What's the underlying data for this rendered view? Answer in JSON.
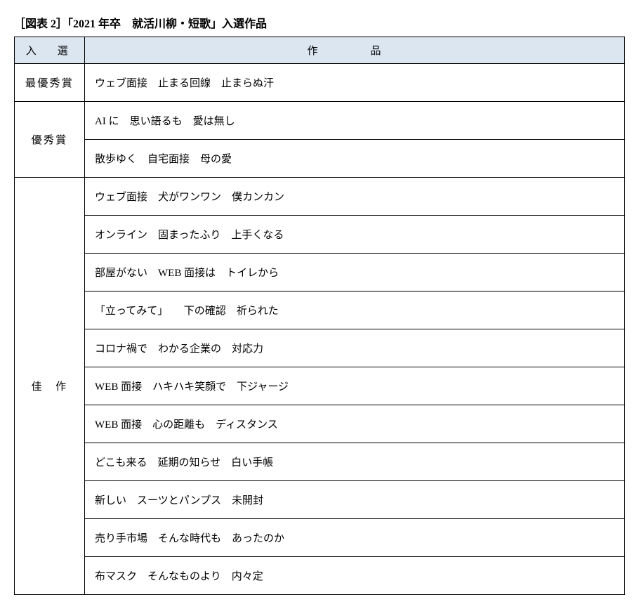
{
  "title": "［図表 2］「2021 年卒 就活川柳・短歌」入選作品",
  "table": {
    "headers": {
      "award": "入 選",
      "work": "作　品"
    },
    "groups": [
      {
        "award": "最優秀賞",
        "spaced": false,
        "works": [
          "ウェブ面接　止まる回線　止まらぬ汗"
        ]
      },
      {
        "award": "優秀賞",
        "spaced": false,
        "works": [
          "AI に　思い語るも　愛は無し",
          "散歩ゆく　自宅面接　母の愛"
        ]
      },
      {
        "award": "佳　作",
        "spaced": false,
        "works": [
          "ウェブ面接　犬がワンワン　僕カンカン",
          "オンライン　固まったふり　上手くなる",
          "部屋がない　WEB 面接は　トイレから",
          "「立ってみて」　　下の確認　祈られた",
          "コロナ禍で　わかる企業の　対応力",
          "WEB 面接　ハキハキ笑顔で　下ジャージ",
          "WEB 面接　心の距離も　ディスタンス",
          "どこも来る　延期の知らせ　白い手帳",
          "新しい　スーツとパンプス　未開封",
          "売り手市場　そんな時代も　あったのか",
          "布マスク　そんなものより　内々定"
        ]
      }
    ]
  }
}
